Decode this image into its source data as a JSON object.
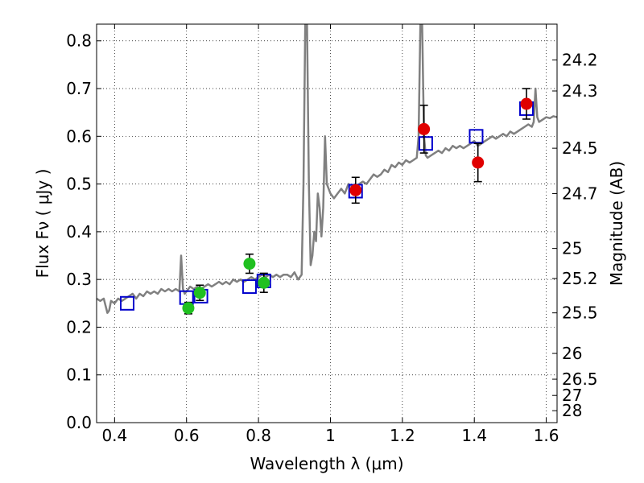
{
  "chart_data": {
    "type": "scatter",
    "title": "",
    "xlabel": "Wavelength  λ (μm)",
    "ylabel": "Flux  Fν  ( μJy )",
    "ylabel_right": "Magnitude (AB)",
    "xlim": [
      0.35,
      1.63
    ],
    "ylim": [
      0.0,
      0.835
    ],
    "grid": true,
    "x_ticks": [
      0.4,
      0.6,
      0.8,
      1.0,
      1.2,
      1.4,
      1.6
    ],
    "x_tick_labels": [
      "0.4",
      "0.6",
      "0.8",
      "1",
      "1.2",
      "1.4",
      "1.6"
    ],
    "y_ticks": [
      0.0,
      0.1,
      0.2,
      0.3,
      0.4,
      0.5,
      0.6,
      0.7,
      0.8
    ],
    "y_tick_labels": [
      "0.0",
      "0.1",
      "0.2",
      "0.3",
      "0.4",
      "0.5",
      "0.6",
      "0.7",
      "0.8"
    ],
    "right_ticks": [
      {
        "flux": 0.76,
        "label": "24.2"
      },
      {
        "flux": 0.695,
        "label": "24.3"
      },
      {
        "flux": 0.575,
        "label": "24.5"
      },
      {
        "flux": 0.48,
        "label": "24.7"
      },
      {
        "flux": 0.365,
        "label": "25"
      },
      {
        "flux": 0.302,
        "label": "25.2"
      },
      {
        "flux": 0.23,
        "label": "25.5"
      },
      {
        "flux": 0.145,
        "label": "26"
      },
      {
        "flux": 0.091,
        "label": "26.5"
      },
      {
        "flux": 0.057,
        "label": "27"
      },
      {
        "flux": 0.025,
        "label": "28"
      }
    ],
    "series": [
      {
        "kind": "line",
        "color": "#808080",
        "x": [
          0.35,
          0.36,
          0.37,
          0.38,
          0.385,
          0.39,
          0.4,
          0.41,
          0.42,
          0.43,
          0.44,
          0.45,
          0.46,
          0.47,
          0.48,
          0.49,
          0.5,
          0.51,
          0.52,
          0.53,
          0.54,
          0.55,
          0.56,
          0.57,
          0.58,
          0.585,
          0.59,
          0.595,
          0.6,
          0.61,
          0.62,
          0.63,
          0.64,
          0.65,
          0.66,
          0.67,
          0.68,
          0.69,
          0.7,
          0.71,
          0.72,
          0.73,
          0.74,
          0.75,
          0.76,
          0.77,
          0.78,
          0.79,
          0.8,
          0.81,
          0.82,
          0.83,
          0.84,
          0.85,
          0.86,
          0.87,
          0.88,
          0.89,
          0.9,
          0.91,
          0.92,
          0.925,
          0.93,
          0.935,
          0.94,
          0.945,
          0.95,
          0.955,
          0.96,
          0.965,
          0.97,
          0.975,
          0.98,
          0.985,
          0.99,
          1.0,
          1.01,
          1.02,
          1.03,
          1.04,
          1.05,
          1.06,
          1.07,
          1.08,
          1.09,
          1.1,
          1.11,
          1.12,
          1.13,
          1.14,
          1.15,
          1.16,
          1.17,
          1.18,
          1.19,
          1.2,
          1.21,
          1.22,
          1.23,
          1.24,
          1.245,
          1.25,
          1.255,
          1.26,
          1.265,
          1.27,
          1.28,
          1.29,
          1.3,
          1.31,
          1.32,
          1.33,
          1.34,
          1.35,
          1.36,
          1.37,
          1.38,
          1.39,
          1.4,
          1.41,
          1.42,
          1.43,
          1.44,
          1.45,
          1.46,
          1.47,
          1.48,
          1.49,
          1.5,
          1.51,
          1.52,
          1.53,
          1.54,
          1.55,
          1.56,
          1.565,
          1.57,
          1.575,
          1.58,
          1.59,
          1.6,
          1.61,
          1.62,
          1.63
        ],
        "y": [
          0.26,
          0.255,
          0.26,
          0.23,
          0.235,
          0.255,
          0.25,
          0.26,
          0.255,
          0.26,
          0.265,
          0.27,
          0.26,
          0.27,
          0.265,
          0.275,
          0.27,
          0.275,
          0.27,
          0.28,
          0.275,
          0.28,
          0.275,
          0.28,
          0.275,
          0.35,
          0.28,
          0.27,
          0.275,
          0.285,
          0.28,
          0.285,
          0.28,
          0.285,
          0.29,
          0.285,
          0.29,
          0.295,
          0.29,
          0.295,
          0.29,
          0.3,
          0.295,
          0.3,
          0.295,
          0.3,
          0.305,
          0.3,
          0.305,
          0.31,
          0.305,
          0.31,
          0.305,
          0.31,
          0.305,
          0.31,
          0.31,
          0.305,
          0.315,
          0.3,
          0.31,
          0.5,
          0.835,
          0.835,
          0.5,
          0.33,
          0.35,
          0.4,
          0.38,
          0.48,
          0.45,
          0.39,
          0.45,
          0.6,
          0.5,
          0.48,
          0.47,
          0.48,
          0.49,
          0.48,
          0.5,
          0.495,
          0.49,
          0.5,
          0.505,
          0.5,
          0.51,
          0.52,
          0.515,
          0.52,
          0.53,
          0.525,
          0.54,
          0.535,
          0.545,
          0.54,
          0.55,
          0.545,
          0.55,
          0.555,
          0.6,
          0.835,
          0.835,
          0.6,
          0.56,
          0.555,
          0.56,
          0.565,
          0.57,
          0.565,
          0.575,
          0.57,
          0.58,
          0.575,
          0.58,
          0.575,
          0.58,
          0.585,
          0.59,
          0.58,
          0.585,
          0.59,
          0.595,
          0.6,
          0.595,
          0.6,
          0.605,
          0.6,
          0.61,
          0.605,
          0.61,
          0.615,
          0.62,
          0.625,
          0.62,
          0.63,
          0.7,
          0.64,
          0.63,
          0.635,
          0.64,
          0.638,
          0.642,
          0.64
        ]
      },
      {
        "kind": "open-square",
        "color": "#0000cc",
        "x": [
          0.435,
          0.6,
          0.64,
          0.775,
          0.815,
          1.07,
          1.265,
          1.405,
          1.545
        ],
        "y": [
          0.25,
          0.262,
          0.265,
          0.285,
          0.297,
          0.485,
          0.585,
          0.6,
          0.658
        ]
      },
      {
        "kind": "filled-circle",
        "color": "#20c020",
        "x": [
          0.605,
          0.637,
          0.775,
          0.815
        ],
        "y": [
          0.24,
          0.272,
          0.333,
          0.293
        ],
        "err": [
          0.012,
          0.016,
          0.02,
          0.02
        ]
      },
      {
        "kind": "filled-circle",
        "color": "#e00000",
        "x": [
          1.07,
          1.26,
          1.41,
          1.545
        ],
        "y": [
          0.487,
          0.615,
          0.545,
          0.668
        ],
        "err": [
          0.027,
          0.05,
          0.04,
          0.032
        ]
      }
    ]
  }
}
